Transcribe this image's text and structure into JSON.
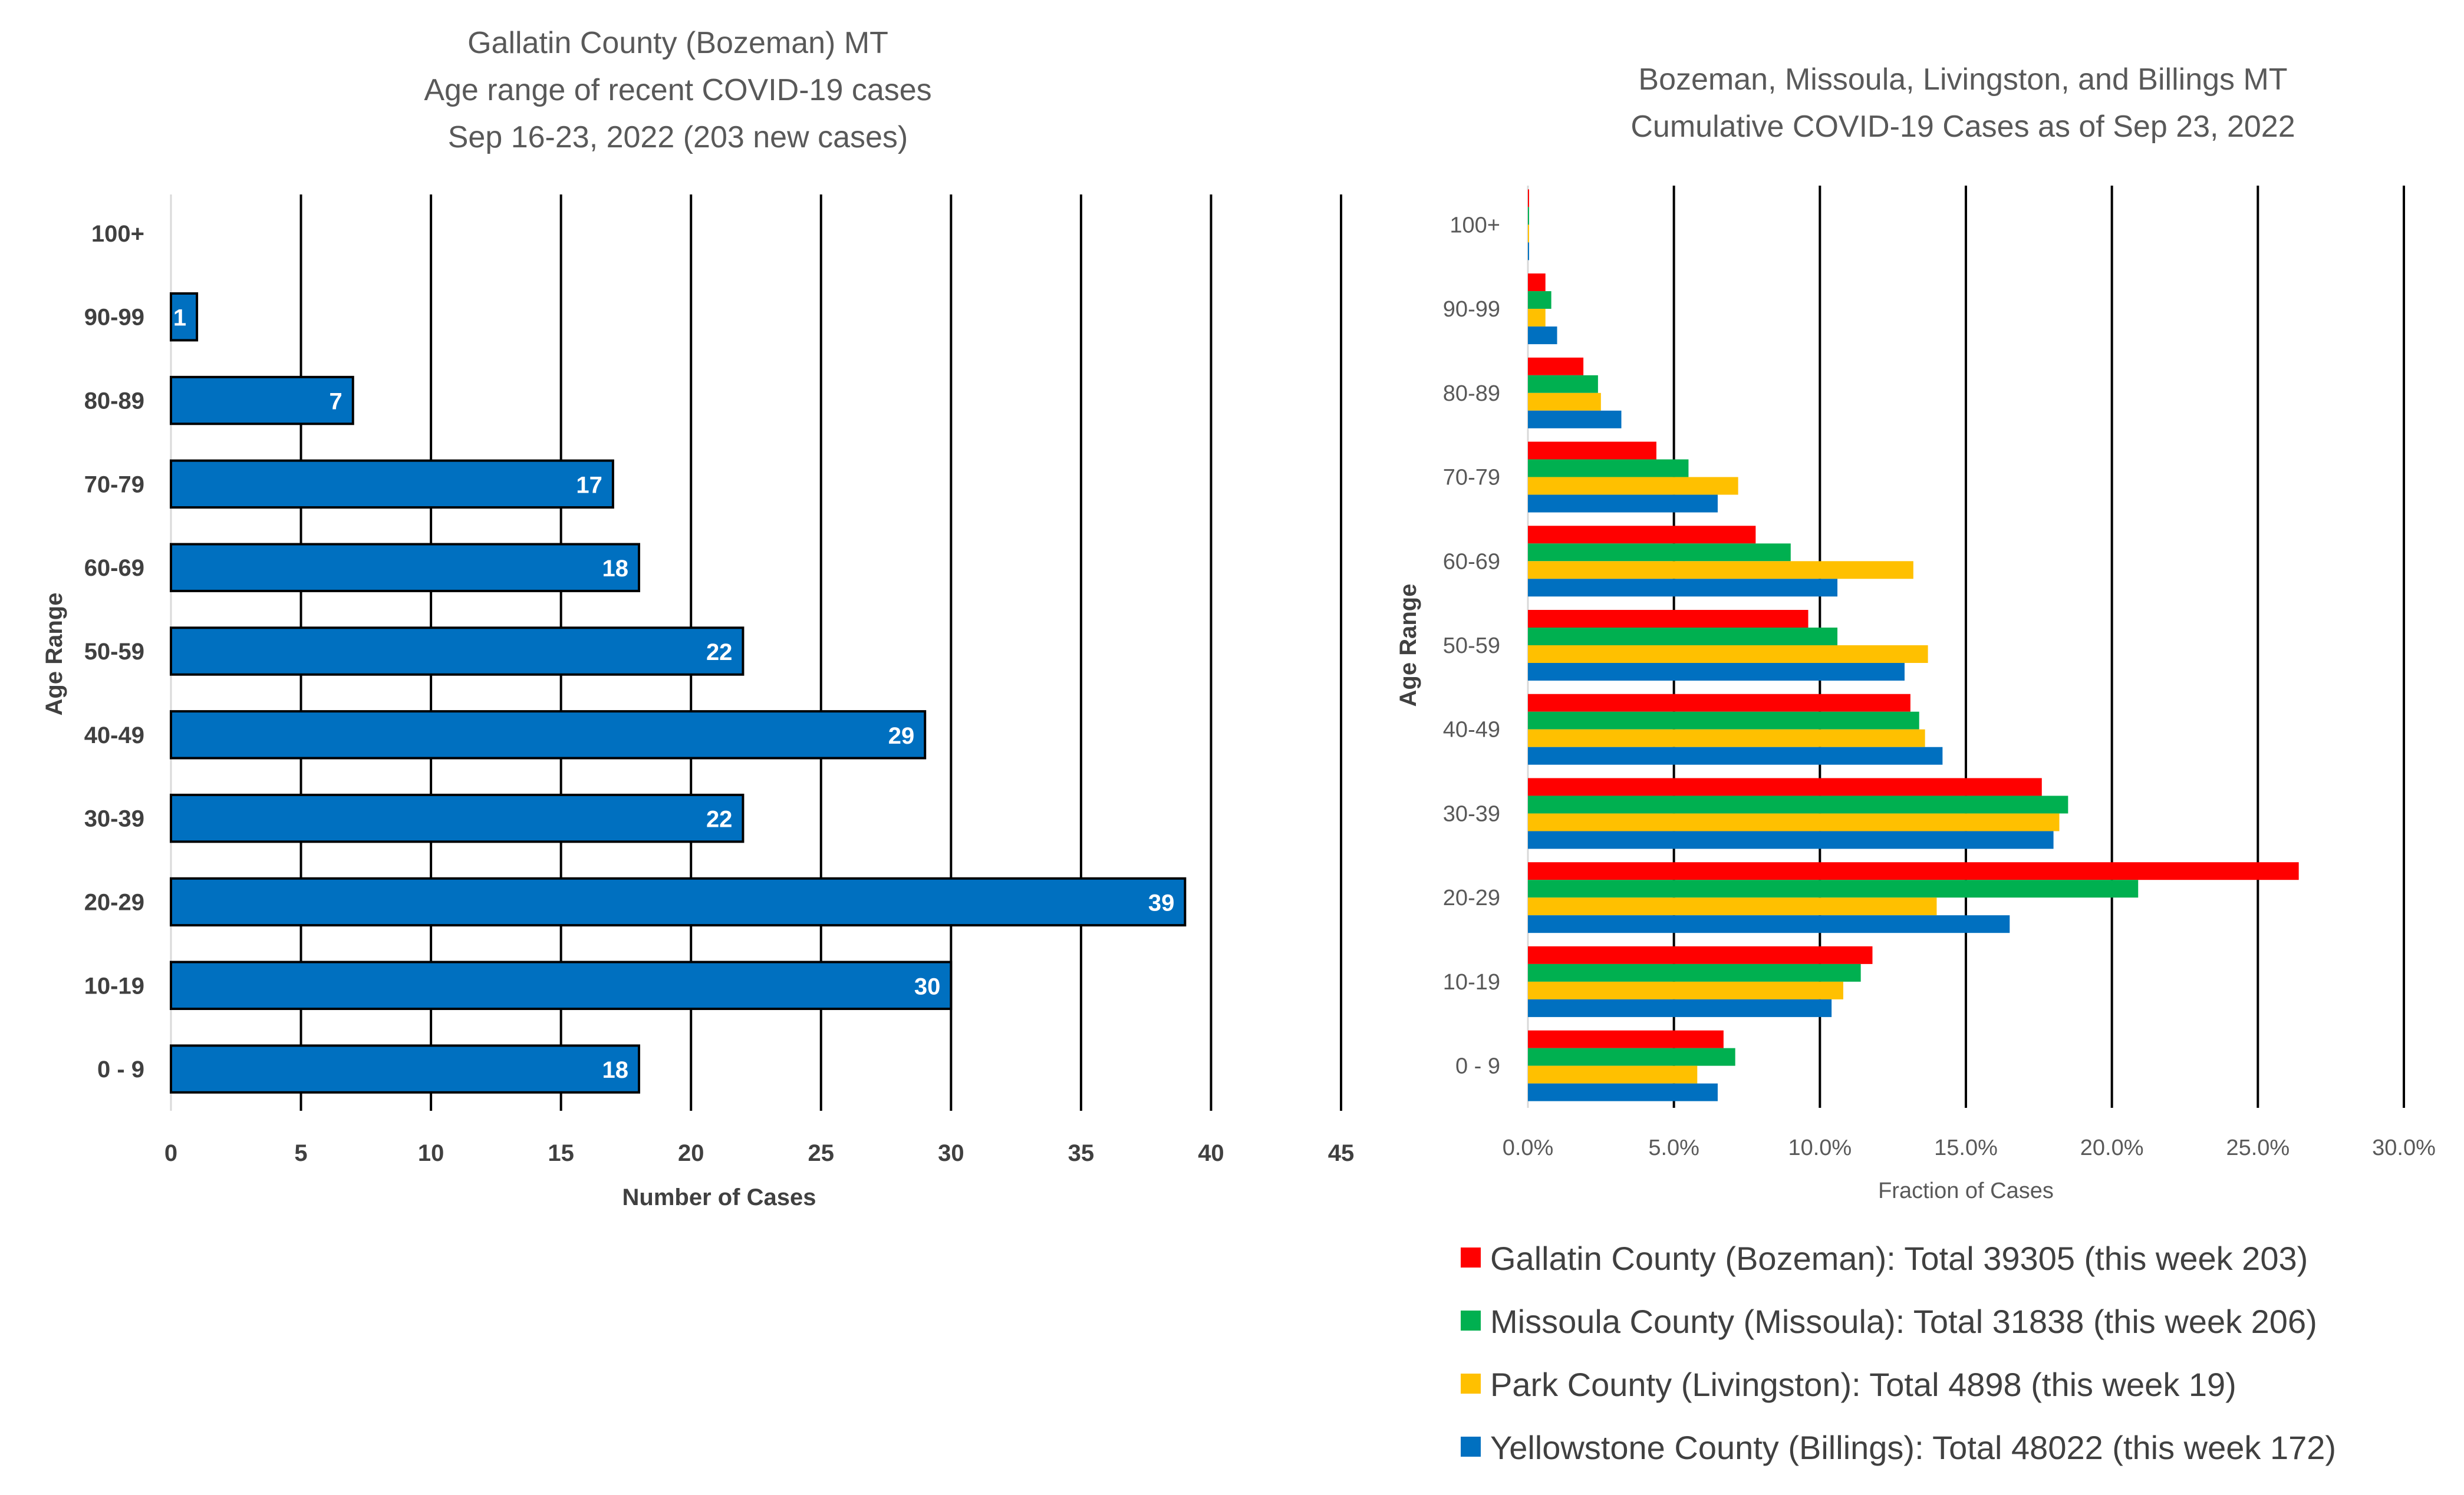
{
  "chart_data": [
    {
      "type": "bar",
      "orientation": "horizontal",
      "title": "Gallatin County (Bozeman) MT",
      "subtitle_lines": [
        "Age range of recent COVID-19 cases",
        "Sep 16-23, 2022 (203 new cases)"
      ],
      "xlabel": "Number of Cases",
      "ylabel": "Age Range",
      "categories": [
        "0 - 9",
        "10-19",
        "20-29",
        "30-39",
        "40-49",
        "50-59",
        "60-69",
        "70-79",
        "80-89",
        "90-99",
        "100+"
      ],
      "values": [
        18,
        30,
        39,
        22,
        29,
        22,
        18,
        17,
        7,
        1,
        null
      ],
      "data_labels": [
        "18",
        "30",
        "39",
        "22",
        "29",
        "22",
        "18",
        "17",
        "7",
        "1",
        ""
      ],
      "xlim": [
        0,
        45
      ],
      "x_ticks": [
        "0",
        "5",
        "10",
        "15",
        "20",
        "25",
        "30",
        "35",
        "40",
        "45"
      ],
      "grid": true,
      "bar_color": "#0070C0"
    },
    {
      "type": "bar",
      "orientation": "horizontal",
      "title_lines": [
        "Bozeman, Missoula, Livingston, and Billings MT",
        "Cumulative COVID-19 Cases as of Sep 23, 2022"
      ],
      "xlabel": "Fraction of Cases",
      "ylabel": "Age Range",
      "categories": [
        "0 - 9",
        "10-19",
        "20-29",
        "30-39",
        "40-49",
        "50-59",
        "60-69",
        "70-79",
        "80-89",
        "90-99",
        "100+"
      ],
      "xlim": [
        0,
        0.3
      ],
      "x_ticks": [
        "0.0%",
        "5.0%",
        "10.0%",
        "15.0%",
        "20.0%",
        "25.0%",
        "30.0%"
      ],
      "grid": true,
      "legend_position": "bottom",
      "series": [
        {
          "name": "Gallatin County (Bozeman): Total 39305 (this week 203)",
          "color": "#FF0000",
          "values": [
            0.067,
            0.118,
            0.264,
            0.176,
            0.131,
            0.096,
            0.078,
            0.044,
            0.019,
            0.006,
            0.0003
          ]
        },
        {
          "name": "Missoula County (Missoula): Total 31838 (this week 206)",
          "color": "#00B050",
          "values": [
            0.071,
            0.114,
            0.209,
            0.185,
            0.134,
            0.106,
            0.09,
            0.055,
            0.024,
            0.008,
            0.0003
          ]
        },
        {
          "name": "Park County (Livingston): Total 4898 (this week 19)",
          "color": "#FFC000",
          "values": [
            0.058,
            0.108,
            0.14,
            0.182,
            0.136,
            0.137,
            0.132,
            0.072,
            0.025,
            0.006,
            0.0002
          ]
        },
        {
          "name": "Yellowstone County (Billings): Total 48022 (this week 172)",
          "color": "#0070C0",
          "values": [
            0.065,
            0.104,
            0.165,
            0.18,
            0.142,
            0.129,
            0.106,
            0.065,
            0.032,
            0.01,
            0.0004
          ]
        }
      ]
    }
  ]
}
